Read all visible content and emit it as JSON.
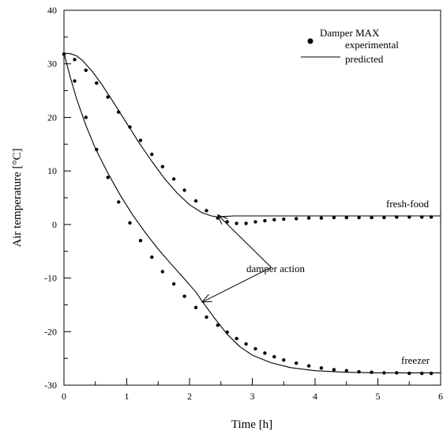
{
  "chart_data": {
    "type": "scatter",
    "title": "",
    "xlabel": "Time [h]",
    "ylabel": "Air temperature [°C]",
    "xlim": [
      0,
      6
    ],
    "ylim": [
      -30,
      40
    ],
    "x_ticks": [
      0,
      1,
      2,
      3,
      4,
      5,
      6
    ],
    "y_ticks": [
      -30,
      -20,
      -10,
      0,
      10,
      20,
      30,
      40
    ],
    "grid": false,
    "legend": {
      "title": "Damper MAX",
      "position": "top-right",
      "entries": [
        {
          "label": "experimental",
          "marker": "dot"
        },
        {
          "label": "predicted",
          "marker": "line"
        }
      ]
    },
    "annotations": {
      "fresh_food": "fresh-food",
      "freezer": "freezer",
      "damper_action": "damper action",
      "damper_action_targets": [
        {
          "x": 2.45,
          "y": 1.8
        },
        {
          "x": 2.2,
          "y": -14.5
        }
      ]
    },
    "series": [
      {
        "name": "fresh-food experimental",
        "kind": "points",
        "x": [
          0.0,
          0.17,
          0.35,
          0.52,
          0.7,
          0.87,
          1.05,
          1.22,
          1.4,
          1.57,
          1.75,
          1.92,
          2.1,
          2.27,
          2.45,
          2.6,
          2.75,
          2.9,
          3.05,
          3.2,
          3.35,
          3.5,
          3.7,
          3.9,
          4.1,
          4.3,
          4.5,
          4.7,
          4.9,
          5.1,
          5.3,
          5.5,
          5.7,
          5.85
        ],
        "y": [
          31.8,
          30.8,
          28.8,
          26.4,
          23.8,
          21.0,
          18.2,
          15.7,
          13.1,
          10.8,
          8.5,
          6.4,
          4.4,
          2.6,
          1.2,
          0.5,
          0.2,
          0.2,
          0.5,
          0.7,
          0.9,
          1.0,
          1.1,
          1.2,
          1.2,
          1.3,
          1.3,
          1.3,
          1.3,
          1.3,
          1.4,
          1.4,
          1.4,
          1.4
        ]
      },
      {
        "name": "freezer experimental",
        "kind": "points",
        "x": [
          0.0,
          0.17,
          0.35,
          0.52,
          0.7,
          0.87,
          1.05,
          1.22,
          1.4,
          1.57,
          1.75,
          1.92,
          2.1,
          2.27,
          2.45,
          2.6,
          2.75,
          2.9,
          3.05,
          3.2,
          3.35,
          3.5,
          3.7,
          3.9,
          4.1,
          4.3,
          4.5,
          4.7,
          4.9,
          5.1,
          5.3,
          5.5,
          5.7,
          5.85
        ],
        "y": [
          31.8,
          26.8,
          20.0,
          14.0,
          8.8,
          4.2,
          0.3,
          -3.0,
          -6.1,
          -8.8,
          -11.1,
          -13.4,
          -15.5,
          -17.3,
          -18.8,
          -20.1,
          -21.3,
          -22.3,
          -23.2,
          -24.0,
          -24.7,
          -25.3,
          -25.9,
          -26.4,
          -26.8,
          -27.1,
          -27.3,
          -27.5,
          -27.6,
          -27.7,
          -27.7,
          -27.8,
          -27.8,
          -27.8
        ]
      },
      {
        "name": "fresh-food predicted",
        "kind": "line",
        "x": [
          0.0,
          0.1,
          0.2,
          0.3,
          0.45,
          0.6,
          0.8,
          1.0,
          1.2,
          1.4,
          1.6,
          1.8,
          2.0,
          2.2,
          2.35,
          2.45,
          2.55,
          2.7,
          3.0,
          3.5,
          4.0,
          4.5,
          5.0,
          5.5,
          6.0
        ],
        "y": [
          32.0,
          31.9,
          31.5,
          30.6,
          28.6,
          26.2,
          22.6,
          18.9,
          15.2,
          11.8,
          8.6,
          5.9,
          3.7,
          2.2,
          1.6,
          1.4,
          1.5,
          1.6,
          1.6,
          1.6,
          1.6,
          1.6,
          1.6,
          1.6,
          1.6
        ]
      },
      {
        "name": "freezer predicted",
        "kind": "line",
        "x": [
          0.0,
          0.1,
          0.2,
          0.35,
          0.5,
          0.7,
          0.9,
          1.1,
          1.3,
          1.5,
          1.7,
          1.9,
          2.1,
          2.2,
          2.4,
          2.6,
          2.8,
          3.0,
          3.3,
          3.6,
          4.0,
          4.5,
          5.0,
          5.5,
          6.0
        ],
        "y": [
          32.0,
          27.5,
          23.5,
          18.5,
          14.2,
          9.6,
          5.4,
          1.7,
          -1.6,
          -4.6,
          -7.3,
          -9.9,
          -12.6,
          -14.3,
          -17.5,
          -20.5,
          -22.8,
          -24.4,
          -25.8,
          -26.7,
          -27.3,
          -27.6,
          -27.7,
          -27.7,
          -27.7
        ]
      }
    ]
  }
}
